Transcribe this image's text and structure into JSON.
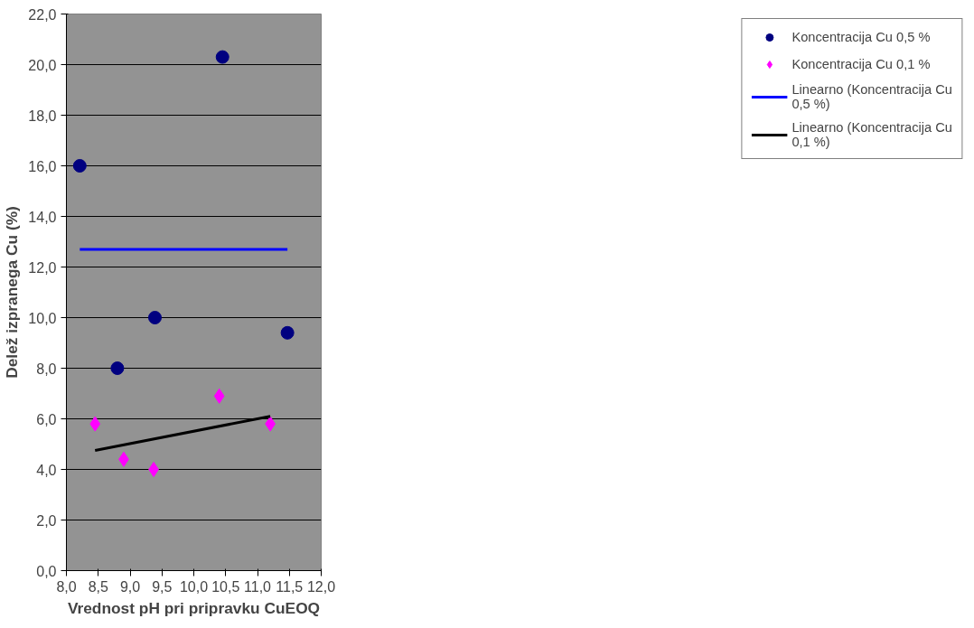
{
  "chart_data": {
    "type": "scatter",
    "xlabel": "Vrednost pH pri pripravku CuEOQ",
    "ylabel": "Delež izpranega Cu (%)",
    "xlim": [
      8,
      12
    ],
    "ylim": [
      0,
      22
    ],
    "xticks": [
      {
        "value": 8,
        "label": "8,0"
      },
      {
        "value": 8.5,
        "label": "8,5"
      },
      {
        "value": 9,
        "label": "9,0"
      },
      {
        "value": 9.5,
        "label": "9,5"
      },
      {
        "value": 10,
        "label": "10,0"
      },
      {
        "value": 10.5,
        "label": "10,5"
      },
      {
        "value": 11,
        "label": "11,0"
      },
      {
        "value": 11.5,
        "label": "11,5"
      },
      {
        "value": 12,
        "label": "12,0"
      }
    ],
    "yticks": [
      {
        "value": 0,
        "label": "0,0"
      },
      {
        "value": 2,
        "label": "2,0"
      },
      {
        "value": 4,
        "label": "4,0"
      },
      {
        "value": 6,
        "label": "6,0"
      },
      {
        "value": 8,
        "label": "8,0"
      },
      {
        "value": 10,
        "label": "10,0"
      },
      {
        "value": 12,
        "label": "12,0"
      },
      {
        "value": 14,
        "label": "14,0"
      },
      {
        "value": 16,
        "label": "16,0"
      },
      {
        "value": 18,
        "label": "18,0"
      },
      {
        "value": 20,
        "label": "20,0"
      },
      {
        "value": 22,
        "label": "22,0"
      }
    ],
    "grid": "y",
    "legend": "right",
    "series": [
      {
        "name": "Koncentracija Cu 0,5 %",
        "color": "#000080",
        "marker": "circle",
        "x": [
          8.21,
          8.8,
          9.39,
          10.45,
          11.47
        ],
        "values": [
          16.0,
          8.0,
          10.0,
          20.3,
          9.4
        ]
      },
      {
        "name": "Koncentracija Cu 0,1 %",
        "color": "#ff00ff",
        "marker": "diamond",
        "x": [
          8.45,
          8.9,
          9.37,
          10.4,
          11.2
        ],
        "values": [
          5.8,
          4.4,
          4.0,
          6.9,
          5.8
        ]
      },
      {
        "name": "Linearno (Koncentracija Cu 0,5 %)",
        "type": "line",
        "color": "#0000ff",
        "x": [
          8.21,
          11.47
        ],
        "values": [
          12.7,
          12.7
        ]
      },
      {
        "name": "Linearno (Koncentracija Cu 0,1 %)",
        "type": "line",
        "color": "#000000",
        "x": [
          8.45,
          11.2
        ],
        "values": [
          4.75,
          6.1
        ]
      }
    ]
  }
}
